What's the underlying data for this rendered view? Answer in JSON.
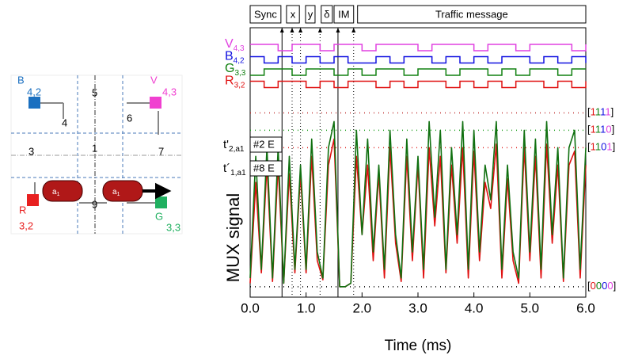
{
  "diagram": {
    "labels": [
      "B",
      "4,2",
      "V",
      "4,3",
      "R",
      "3,2",
      "G",
      "3,3",
      "5",
      "4",
      "6",
      "3",
      "1",
      "7",
      "9"
    ],
    "car_label": "a",
    "car_sub": "1"
  },
  "chart_data": [
    {
      "type": "line",
      "xlabel": "Time (ms)",
      "ylabel": "MUX signal",
      "xlim": [
        0,
        6
      ],
      "ylim": [
        -0.06,
        1.49
      ],
      "xticks": [
        {
          "value": 0,
          "label": "0.0"
        },
        {
          "value": 1,
          "label": "1.0"
        },
        {
          "value": 2,
          "label": "2.0"
        },
        {
          "value": 3,
          "label": "3.0"
        },
        {
          "value": 4,
          "label": "4.0"
        },
        {
          "value": 5,
          "label": "5.0"
        },
        {
          "value": 6,
          "label": "6.0"
        }
      ],
      "x": [
        0,
        0.1,
        0.2,
        0.3,
        0.4,
        0.5,
        0.6,
        0.7,
        0.8,
        0.9,
        1,
        1.1,
        1.2,
        1.3,
        1.4,
        1.5,
        1.6,
        1.7,
        1.8,
        1.9,
        2,
        2.1,
        2.2,
        2.3,
        2.4,
        2.5,
        2.6,
        2.7,
        2.8,
        2.9,
        3,
        3.1,
        3.2,
        3.3,
        3.4,
        3.5,
        3.6,
        3.7,
        3.8,
        3.9,
        4,
        4.1,
        4.2,
        4.3,
        4.4,
        4.5,
        4.6,
        4.7,
        4.8,
        4.9,
        5,
        5.1,
        5.2,
        5.3,
        5.4,
        5.5,
        5.6,
        5.7,
        5.8,
        5.9,
        6
      ],
      "series": [
        {
          "color": "#e01010",
          "values": [
            0.02,
            0.6,
            0.08,
            0.7,
            0.03,
            0.7,
            0.02,
            0.65,
            0.08,
            0.65,
            0.08,
            0.75,
            0.15,
            0.04,
            0.7,
            0.85,
            0,
            0,
            0.02,
            0.75,
            0.3,
            0.7,
            0.15,
            0.65,
            0.05,
            0.8,
            0.25,
            0.03,
            0.75,
            0.15,
            0.7,
            0.05,
            0.8,
            0.35,
            0.75,
            0.08,
            0.7,
            0.25,
            0.8,
            0.05,
            0.78,
            0.15,
            0.6,
            0.45,
            0.82,
            0.05,
            0.62,
            0.15,
            0.02,
            0.8,
            0.15,
            0.75,
            0.05,
            0.82,
            0.25,
            0.7,
            0.03,
            0.7,
            0.78,
            0.05,
            0.7
          ]
        },
        {
          "color": "#107010",
          "values": [
            0.05,
            0.75,
            0.1,
            0.8,
            0.05,
            0.8,
            0.02,
            0.75,
            0.1,
            0.7,
            0.1,
            0.85,
            0.2,
            0.05,
            0.8,
            0.95,
            0,
            0,
            0.02,
            0.9,
            0.3,
            0.85,
            0.2,
            0.7,
            0.1,
            0.9,
            0.3,
            0.05,
            0.85,
            0.2,
            0.75,
            0.1,
            0.95,
            0.4,
            0.9,
            0.1,
            0.8,
            0.3,
            0.95,
            0.1,
            0.9,
            0.2,
            0.7,
            0.5,
            0.95,
            0.1,
            0.7,
            0.2,
            0.05,
            0.9,
            0.2,
            0.85,
            0.1,
            0.95,
            0.3,
            0.8,
            0.05,
            0.8,
            0.9,
            0.1,
            0.8
          ]
        }
      ],
      "levels": [
        {
          "value": 1.0,
          "label": "[1111]",
          "color": "#c03030"
        },
        {
          "value": 0.9,
          "label": "[1110]",
          "color": "#20a020"
        },
        {
          "value": 0.8,
          "label": "[1101]",
          "color": "#e02020"
        },
        {
          "value": 0,
          "label": "[0000]",
          "color": "#000000"
        }
      ],
      "segments": [
        {
          "start": 0,
          "end": 0.55,
          "label": "Sync"
        },
        {
          "start": 0.65,
          "end": 0.88,
          "label": "x"
        },
        {
          "start": 0.99,
          "end": 1.16,
          "label": "y"
        },
        {
          "start": 1.27,
          "end": 1.47,
          "label": "δ"
        },
        {
          "start": 1.5,
          "end": 1.85,
          "label": "IM"
        },
        {
          "start": 1.92,
          "end": 6,
          "label": "Traffic message"
        }
      ],
      "vlines": [
        {
          "x": 0.57,
          "style": "solid"
        },
        {
          "x": 0.75,
          "style": "dotted"
        },
        {
          "x": 0.9,
          "style": "dotted"
        },
        {
          "x": 1.25,
          "style": "dotted"
        },
        {
          "x": 1.57,
          "style": "solid"
        },
        {
          "x": 1.85,
          "style": "dotted"
        }
      ],
      "t_labels": [
        {
          "symbol": "t'",
          "subscript": "2,a1",
          "box": "#2 E"
        },
        {
          "symbol": "t´",
          "subscript": "1,a1",
          "box": "#8 E"
        }
      ]
    },
    {
      "type": "step",
      "xlim": [
        0,
        6
      ],
      "ylim": [
        0,
        1
      ],
      "x": [
        0,
        0.25,
        0.5,
        0.75,
        1,
        1.25,
        1.5,
        1.75,
        2,
        2.25,
        2.5,
        2.75,
        3,
        3.25,
        3.5,
        3.75,
        4,
        4.25,
        4.5,
        4.75,
        5,
        5.25,
        5.5,
        5.75,
        6
      ],
      "series": [
        {
          "name": "V",
          "subscript": "4,3",
          "color": "#e040e0",
          "values": [
            1,
            1,
            0,
            1,
            1,
            0,
            1,
            1,
            0,
            1,
            1,
            1,
            0,
            1,
            1,
            1,
            0,
            1,
            1,
            0,
            1,
            1,
            1,
            0,
            1
          ]
        },
        {
          "name": "B",
          "subscript": "4,2",
          "color": "#1010e0",
          "values": [
            1,
            0,
            1,
            0,
            1,
            0,
            1,
            0,
            0,
            1,
            0,
            1,
            1,
            0,
            1,
            0,
            1,
            0,
            1,
            1,
            0,
            1,
            0,
            1,
            0
          ]
        },
        {
          "name": "G",
          "subscript": "3,3",
          "color": "#108010",
          "values": [
            0,
            1,
            1,
            0,
            1,
            1,
            0,
            1,
            0,
            1,
            1,
            0,
            1,
            1,
            0,
            1,
            1,
            0,
            1,
            0,
            1,
            1,
            0,
            1,
            1
          ]
        },
        {
          "name": "R",
          "subscript": "3,2",
          "color": "#e01010",
          "values": [
            1,
            0,
            1,
            1,
            0,
            1,
            0,
            1,
            1,
            0,
            1,
            0,
            1,
            1,
            0,
            1,
            0,
            1,
            0,
            1,
            1,
            0,
            1,
            0,
            1
          ]
        }
      ]
    }
  ]
}
